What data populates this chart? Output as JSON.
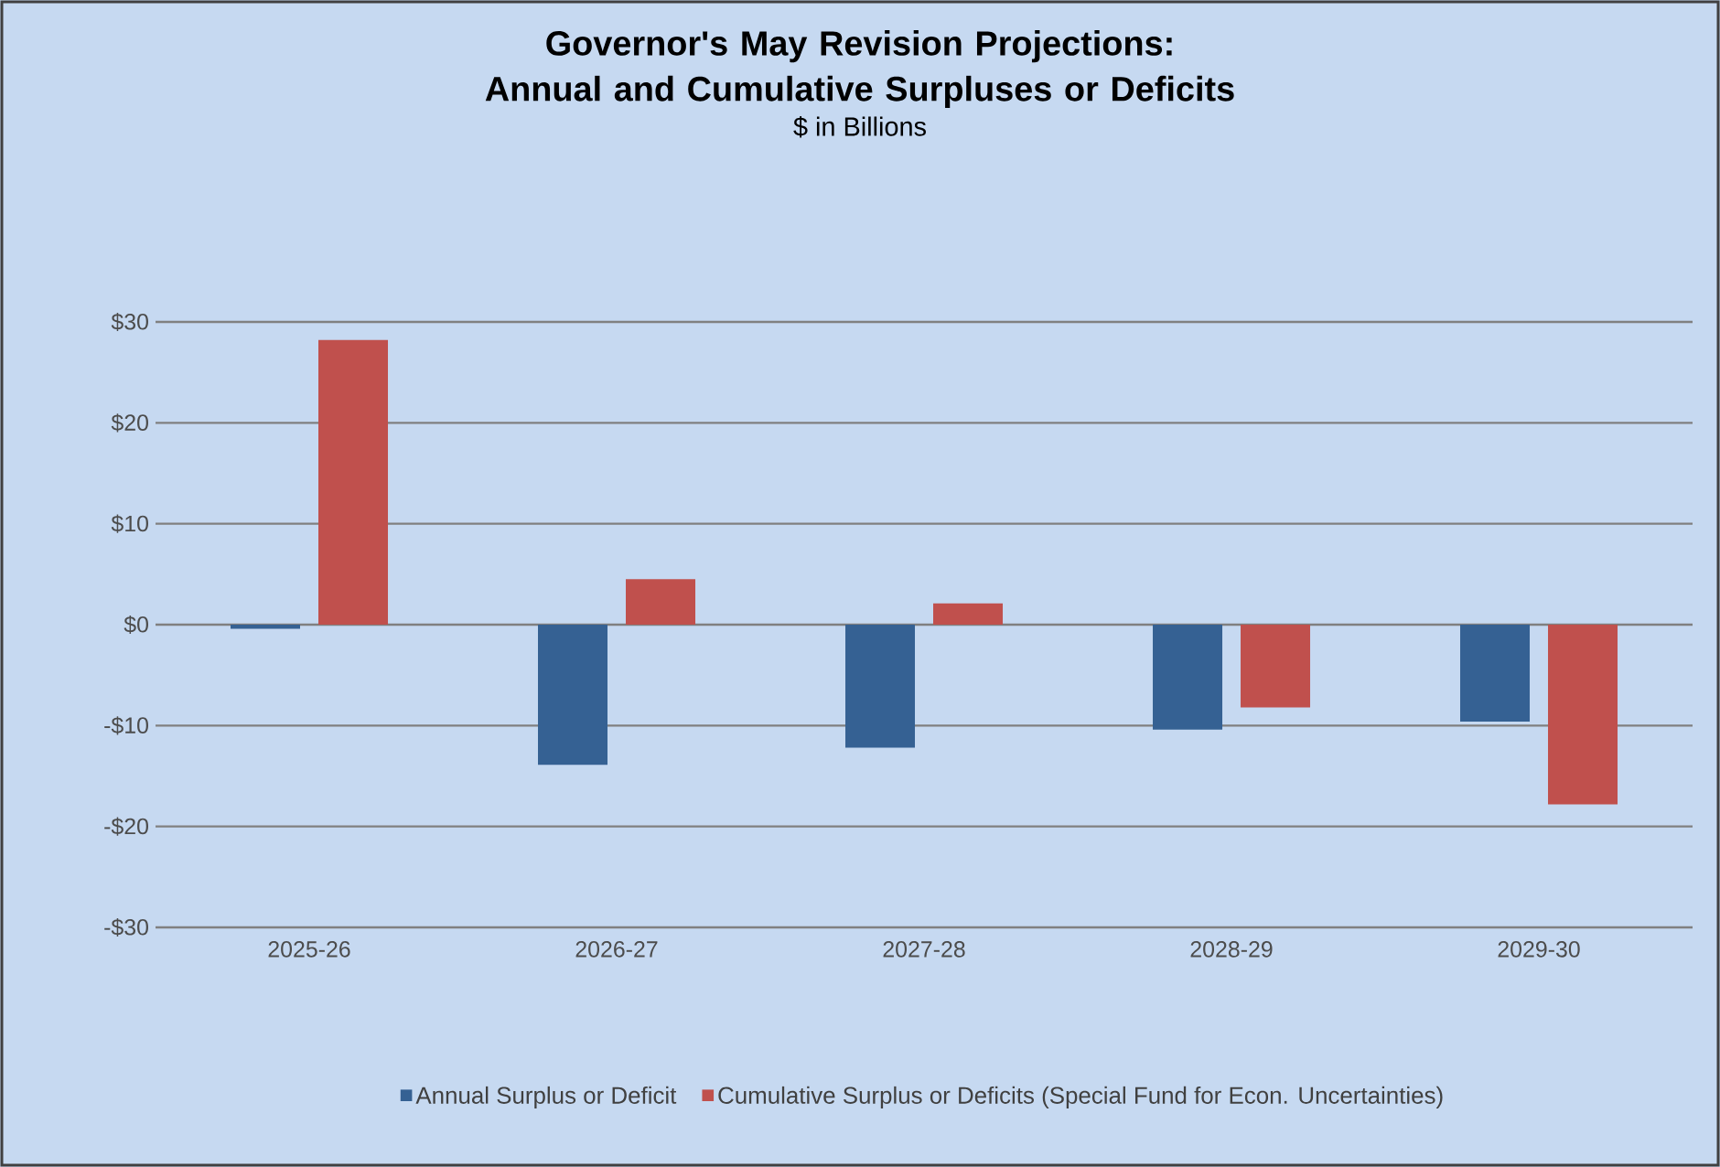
{
  "chart_data": {
    "type": "bar",
    "title": "Governor's May Revision Projections: Annual and Cumulative Surpluses or Deficits",
    "subtitle": "$ in Billions",
    "categories": [
      "2025-26",
      "2026-27",
      "2027-28",
      "2028-29",
      "2029-30"
    ],
    "series": [
      {
        "name": "Annual Surplus or Deficit",
        "color": "#356193",
        "values": [
          -0.4,
          -13.9,
          -12.2,
          -10.4,
          -9.6
        ]
      },
      {
        "name": "Cumulative Surplus or Deficits (Special Fund for Econ. Uncertainties)",
        "color": "#c0504d",
        "values": [
          28.2,
          4.5,
          2.1,
          -8.2,
          -17.8
        ]
      }
    ],
    "ylim": [
      -30,
      30
    ],
    "yticks": [
      {
        "value": -30,
        "label": "-$30"
      },
      {
        "value": -20,
        "label": "-$20"
      },
      {
        "value": -10,
        "label": "-$10"
      },
      {
        "value": 0,
        "label": "$0"
      },
      {
        "value": 10,
        "label": "$10"
      },
      {
        "value": 20,
        "label": "$20"
      },
      {
        "value": 30,
        "label": "$30"
      }
    ],
    "grid": "y",
    "legend": "bottom"
  }
}
